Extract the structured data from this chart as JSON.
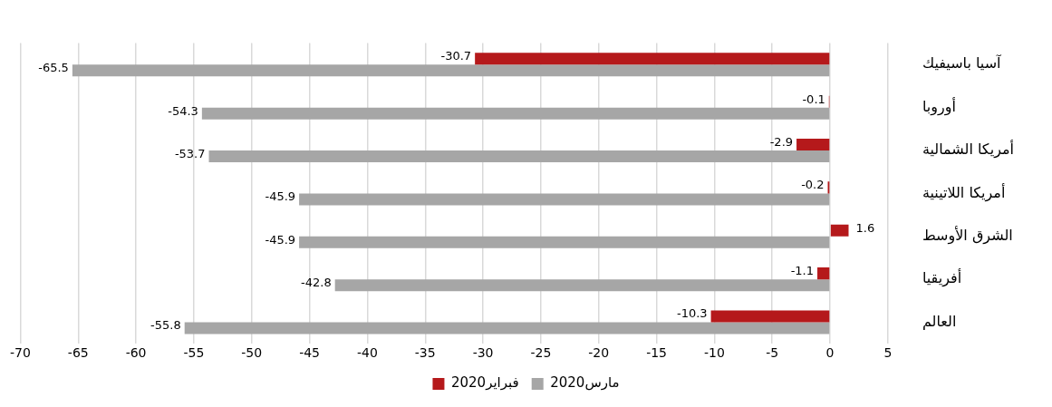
{
  "chart_data": {
    "type": "bar",
    "orientation": "horizontal",
    "categories": [
      "آسيا باسيفيك",
      "أوروبا",
      "أمريكا الشمالية",
      "أمريكا اللاتينية",
      "الشرق الأوسط",
      "أفريقيا",
      "العالم"
    ],
    "series": [
      {
        "name": "فبراير2020",
        "color": "#b5191b",
        "values": [
          -30.7,
          -0.1,
          -2.9,
          -0.2,
          1.6,
          -1.1,
          -10.3
        ]
      },
      {
        "name": "مارس2020",
        "color": "#a6a6a6",
        "values": [
          -65.5,
          -54.3,
          -53.7,
          -45.9,
          -45.9,
          -42.8,
          -55.8
        ]
      }
    ],
    "xlim": [
      -70,
      5
    ],
    "xticks": [
      -70,
      -65,
      -60,
      -55,
      -50,
      -45,
      -40,
      -35,
      -30,
      -25,
      -20,
      -15,
      -10,
      -5,
      0,
      5
    ],
    "grid": "x",
    "legend": "bottom",
    "data_labels": true
  }
}
